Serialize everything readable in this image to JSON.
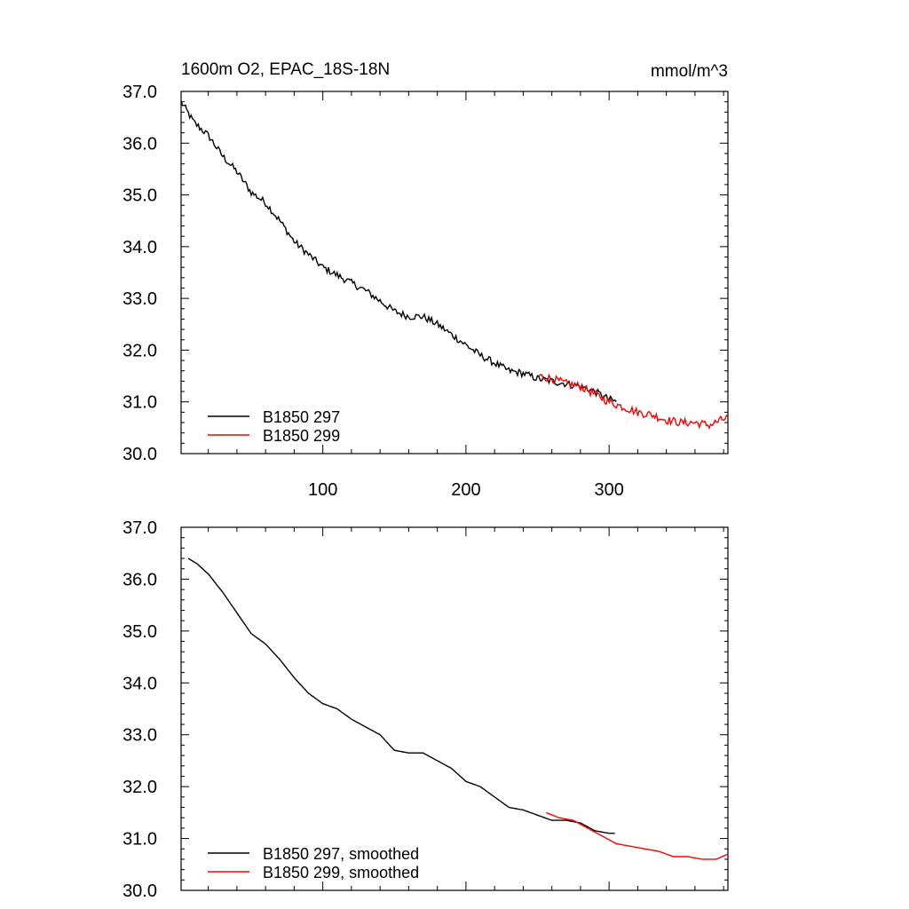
{
  "chart_data": [
    {
      "type": "line",
      "title": "1600m O2, EPAC_18S-18N",
      "units": "mmol/m^3",
      "xlim": [
        1,
        383
      ],
      "ylim": [
        30.0,
        37.0
      ],
      "xticks": [
        100,
        200,
        300
      ],
      "xtick_labels": [
        "100",
        "200",
        "300"
      ],
      "yticks": [
        30,
        31,
        32,
        33,
        34,
        35,
        36,
        37
      ],
      "ytick_labels": [
        "30.0",
        "31.0",
        "32.0",
        "33.0",
        "34.0",
        "35.0",
        "36.0",
        "37.0"
      ],
      "legend_position": "bottom-left",
      "series": [
        {
          "name": "B1850 297",
          "color": "#000000",
          "noise": 0.07,
          "points": [
            [
              1,
              36.8
            ],
            [
              10,
              36.4
            ],
            [
              20,
              36.15
            ],
            [
              30,
              35.75
            ],
            [
              40,
              35.45
            ],
            [
              50,
              35.05
            ],
            [
              60,
              34.85
            ],
            [
              70,
              34.5
            ],
            [
              80,
              34.1
            ],
            [
              90,
              33.85
            ],
            [
              100,
              33.6
            ],
            [
              110,
              33.45
            ],
            [
              120,
              33.3
            ],
            [
              130,
              33.15
            ],
            [
              140,
              32.95
            ],
            [
              150,
              32.75
            ],
            [
              160,
              32.65
            ],
            [
              170,
              32.65
            ],
            [
              180,
              32.5
            ],
            [
              190,
              32.3
            ],
            [
              200,
              32.1
            ],
            [
              210,
              31.9
            ],
            [
              220,
              31.75
            ],
            [
              230,
              31.6
            ],
            [
              240,
              31.55
            ],
            [
              250,
              31.45
            ],
            [
              260,
              31.4
            ],
            [
              270,
              31.35
            ],
            [
              280,
              31.3
            ],
            [
              290,
              31.2
            ],
            [
              300,
              31.05
            ],
            [
              305,
              31.0
            ]
          ]
        },
        {
          "name": "B1850 299",
          "color": "#ff0000",
          "noise": 0.08,
          "points": [
            [
              251,
              31.5
            ],
            [
              260,
              31.45
            ],
            [
              270,
              31.35
            ],
            [
              280,
              31.3
            ],
            [
              290,
              31.15
            ],
            [
              300,
              31.0
            ],
            [
              310,
              30.9
            ],
            [
              320,
              30.8
            ],
            [
              330,
              30.75
            ],
            [
              340,
              30.65
            ],
            [
              350,
              30.6
            ],
            [
              360,
              30.6
            ],
            [
              370,
              30.55
            ],
            [
              383,
              30.7
            ]
          ]
        }
      ]
    },
    {
      "type": "line",
      "xlim": [
        1,
        383
      ],
      "ylim": [
        30.0,
        37.0
      ],
      "xticks": [
        100,
        200,
        300
      ],
      "yticks": [
        30,
        31,
        32,
        33,
        34,
        35,
        36,
        37
      ],
      "ytick_labels": [
        "30.0",
        "31.0",
        "32.0",
        "33.0",
        "34.0",
        "35.0",
        "36.0",
        "37.0"
      ],
      "legend_position": "bottom-left",
      "series": [
        {
          "name": "B1850 297, smoothed",
          "color": "#000000",
          "noise": 0,
          "points": [
            [
              6,
              36.4
            ],
            [
              12,
              36.3
            ],
            [
              20,
              36.1
            ],
            [
              30,
              35.75
            ],
            [
              40,
              35.35
            ],
            [
              50,
              34.95
            ],
            [
              60,
              34.75
            ],
            [
              70,
              34.45
            ],
            [
              80,
              34.1
            ],
            [
              90,
              33.8
            ],
            [
              100,
              33.6
            ],
            [
              110,
              33.5
            ],
            [
              120,
              33.3
            ],
            [
              130,
              33.15
            ],
            [
              140,
              33.0
            ],
            [
              150,
              32.7
            ],
            [
              160,
              32.65
            ],
            [
              170,
              32.65
            ],
            [
              180,
              32.5
            ],
            [
              190,
              32.35
            ],
            [
              200,
              32.1
            ],
            [
              210,
              32.0
            ],
            [
              220,
              31.8
            ],
            [
              230,
              31.6
            ],
            [
              240,
              31.55
            ],
            [
              250,
              31.45
            ],
            [
              260,
              31.35
            ],
            [
              270,
              31.35
            ],
            [
              280,
              31.3
            ],
            [
              290,
              31.15
            ],
            [
              300,
              31.1
            ],
            [
              304,
              31.1
            ]
          ]
        },
        {
          "name": "B1850 299, smoothed",
          "color": "#ff0000",
          "noise": 0,
          "points": [
            [
              256,
              31.5
            ],
            [
              265,
              31.4
            ],
            [
              275,
              31.35
            ],
            [
              285,
              31.2
            ],
            [
              295,
              31.05
            ],
            [
              305,
              30.9
            ],
            [
              315,
              30.85
            ],
            [
              325,
              30.8
            ],
            [
              335,
              30.75
            ],
            [
              345,
              30.65
            ],
            [
              355,
              30.65
            ],
            [
              365,
              30.6
            ],
            [
              375,
              30.6
            ],
            [
              383,
              30.7
            ]
          ]
        }
      ]
    }
  ]
}
